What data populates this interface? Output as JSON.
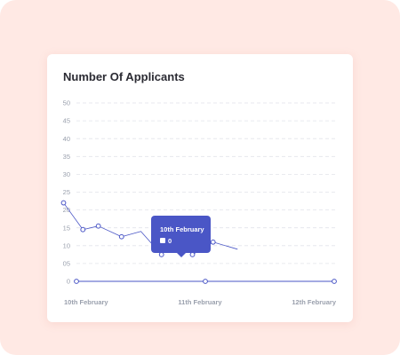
{
  "chart_data": {
    "type": "line",
    "title": "Number Of Applicants",
    "xlabel": "",
    "ylabel": "",
    "ylim": [
      0,
      50
    ],
    "yticks": [
      "0",
      "05",
      "10",
      "15",
      "20",
      "25",
      "30",
      "35",
      "40",
      "45",
      "50"
    ],
    "ytick_values": [
      0,
      5,
      10,
      15,
      20,
      25,
      30,
      35,
      40,
      45,
      50
    ],
    "x_tick_labels": [
      "10th February",
      "11th February",
      "12th February"
    ],
    "x_tick_positions": [
      0,
      1,
      2
    ],
    "grid": true,
    "series": [
      {
        "x": [
          -0.1,
          0.05,
          0.17,
          0.35,
          0.5,
          0.66,
          0.75,
          0.9,
          1.06,
          1.25
        ],
        "values": [
          22,
          14.5,
          15.5,
          12.5,
          14,
          7.5,
          13,
          7.5,
          11,
          9
        ],
        "color": "#4a56c6",
        "markers_on": [
          true,
          true,
          true,
          true,
          false,
          true,
          true,
          true,
          true,
          false
        ]
      },
      {
        "x": [
          0,
          1,
          2
        ],
        "values": [
          0,
          0,
          0
        ],
        "color": "#4a56c6",
        "markers_on": [
          true,
          true,
          true
        ]
      }
    ],
    "tooltip": {
      "title": "10th February",
      "value": "0",
      "x": 0.5,
      "y": 14
    }
  },
  "colors": {
    "accent": "#4a56c6",
    "background": "#ffe9e4",
    "card": "#ffffff",
    "grid": "#e2e4ea",
    "axis_text": "#9aa0ad"
  }
}
